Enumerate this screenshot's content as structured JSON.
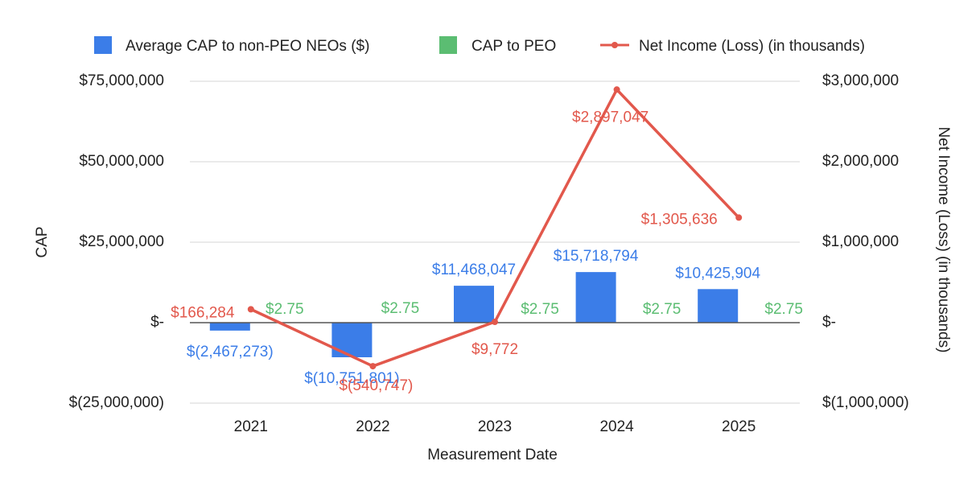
{
  "chart_data": {
    "type": "bar",
    "categories": [
      "2021",
      "2022",
      "2023",
      "2024",
      "2025"
    ],
    "xlabel": "Measurement Date",
    "ylabel_left": "CAP",
    "ylabel_right": "Net Income (Loss) (in thousands)",
    "ylim_left": [
      -25000000,
      75000000
    ],
    "ylim_right": [
      -1000000,
      3000000
    ],
    "yticks_left": [
      {
        "value": 75000000,
        "label": "$75,000,000"
      },
      {
        "value": 50000000,
        "label": "$50,000,000"
      },
      {
        "value": 25000000,
        "label": "$25,000,000"
      },
      {
        "value": 0,
        "label": "$-"
      },
      {
        "value": -25000000,
        "label": "$(25,000,000)"
      }
    ],
    "yticks_right": [
      {
        "value": 3000000,
        "label": "$3,000,000"
      },
      {
        "value": 2000000,
        "label": "$2,000,000"
      },
      {
        "value": 1000000,
        "label": "$1,000,000"
      },
      {
        "value": 0,
        "label": "$-"
      },
      {
        "value": -1000000,
        "label": "$(1,000,000)"
      }
    ],
    "legend_position": "top",
    "series": [
      {
        "name": "Average CAP to non-PEO NEOs ($)",
        "kind": "bar",
        "axis": "left",
        "color": "#3b7de8",
        "values": [
          -2467273,
          -10751801,
          11468047,
          15718794,
          10425904
        ],
        "labels": [
          "$(2,467,273)",
          "$(10,751,801)",
          "$11,468,047",
          "$15,718,794",
          "$10,425,904"
        ]
      },
      {
        "name": "CAP to PEO",
        "kind": "bar",
        "axis": "left",
        "color": "#5bbd72",
        "values": [
          2.75,
          2.75,
          2.75,
          2.75,
          2.75
        ],
        "labels": [
          "$2.75",
          "$2.75",
          "$2.75",
          "$2.75",
          "$2.75"
        ]
      },
      {
        "name": "Net Income (Loss) (in thousands)",
        "kind": "line",
        "axis": "right",
        "color": "#e2584c",
        "values": [
          166284,
          -540747,
          9772,
          2897047,
          1305636
        ],
        "labels": [
          "$166,284",
          "$(540,747)",
          "$9,772",
          "$2,897,047",
          "$1,305,636"
        ]
      }
    ]
  }
}
